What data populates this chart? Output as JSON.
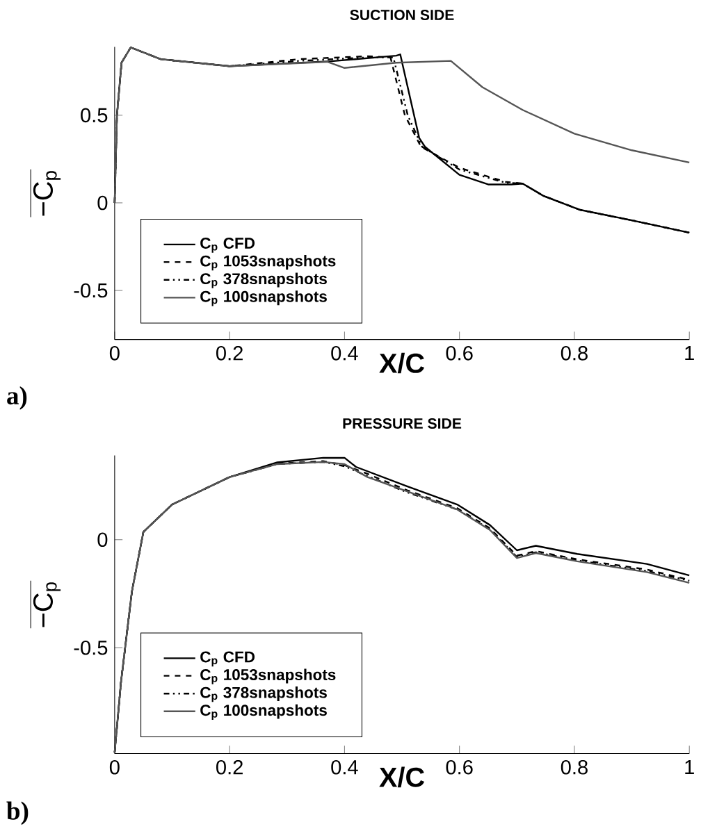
{
  "chart_data": [
    {
      "type": "line",
      "title": "SUCTION SIDE",
      "xlabel": "X/C",
      "ylabel": "−C$_{p}$",
      "annotations": [
        "a)"
      ],
      "xlim": [
        0,
        1
      ],
      "ylim": [
        -0.78,
        0.89
      ],
      "xticks": [
        0,
        0.2,
        0.4,
        0.6,
        0.8,
        1
      ],
      "yticks": [
        -0.5,
        0,
        0.5
      ],
      "legend": "bottom left",
      "series": [
        {
          "name": "C$_{p}$ CFD",
          "color": "#000000",
          "line_style": "solid",
          "x": [
            0,
            0.004,
            0.012,
            0.028,
            0.08,
            0.2,
            0.377,
            0.49,
            0.497,
            0.53,
            0.54,
            0.6,
            0.65,
            0.69,
            0.71,
            0.746,
            0.81,
            0.9,
            1
          ],
          "values": [
            0,
            0.5,
            0.8,
            0.887,
            0.82,
            0.78,
            0.808,
            0.84,
            0.847,
            0.37,
            0.32,
            0.16,
            0.105,
            0.105,
            0.11,
            0.04,
            -0.04,
            -0.1,
            -0.17
          ]
        },
        {
          "name": "C$_{p}$ 1053snapshots",
          "color": "#000000",
          "line_style": "dashed",
          "x": [
            0,
            0.004,
            0.012,
            0.028,
            0.08,
            0.2,
            0.32,
            0.44,
            0.48,
            0.505,
            0.533,
            0.6,
            0.68,
            0.71,
            0.746,
            0.81,
            0.9,
            1
          ],
          "values": [
            0,
            0.5,
            0.8,
            0.887,
            0.82,
            0.78,
            0.82,
            0.837,
            0.83,
            0.5,
            0.32,
            0.2,
            0.12,
            0.11,
            0.04,
            -0.04,
            -0.1,
            -0.17
          ]
        },
        {
          "name": "C$_{p}$ 378snapshots",
          "color": "#000000",
          "line_style": "dashdot",
          "x": [
            0,
            0.004,
            0.012,
            0.028,
            0.08,
            0.2,
            0.32,
            0.44,
            0.485,
            0.51,
            0.535,
            0.6,
            0.68,
            0.71,
            0.746,
            0.81,
            0.9,
            1
          ],
          "values": [
            0,
            0.5,
            0.8,
            0.887,
            0.82,
            0.78,
            0.81,
            0.83,
            0.83,
            0.5,
            0.32,
            0.19,
            0.115,
            0.11,
            0.04,
            -0.04,
            -0.1,
            -0.17
          ]
        },
        {
          "name": "C$_{p}$ 100snapshots",
          "color": "#555555",
          "line_style": "solid",
          "x": [
            0,
            0.004,
            0.012,
            0.028,
            0.08,
            0.2,
            0.37,
            0.4,
            0.49,
            0.585,
            0.64,
            0.71,
            0.8,
            0.9,
            1
          ],
          "values": [
            0,
            0.5,
            0.8,
            0.887,
            0.82,
            0.78,
            0.805,
            0.77,
            0.8,
            0.81,
            0.66,
            0.53,
            0.395,
            0.3,
            0.23
          ]
        }
      ]
    },
    {
      "type": "line",
      "title": "PRESSURE SIDE",
      "xlabel": "X/C",
      "ylabel": "−C$_{p}$",
      "annotations": [
        "b)"
      ],
      "xlim": [
        0,
        1
      ],
      "ylim": [
        -0.99,
        0.39
      ],
      "xticks": [
        0,
        0.2,
        0.4,
        0.6,
        0.8,
        1
      ],
      "yticks": [
        -0.5,
        0
      ],
      "legend": "bottom left",
      "series": [
        {
          "name": "C$_{p}$ CFD",
          "color": "#000000",
          "line_style": "solid",
          "x": [
            0,
            0.011,
            0.03,
            0.05,
            0.1,
            0.2,
            0.283,
            0.363,
            0.4,
            0.42,
            0.508,
            0.596,
            0.653,
            0.7,
            0.733,
            0.805,
            0.926,
            1
          ],
          "values": [
            -0.985,
            -0.66,
            -0.24,
            0.036,
            0.163,
            0.29,
            0.358,
            0.379,
            0.379,
            0.337,
            0.248,
            0.163,
            0.068,
            -0.049,
            -0.028,
            -0.066,
            -0.112,
            -0.165
          ]
        },
        {
          "name": "C$_{p}$ 1053snapshots",
          "color": "#000000",
          "line_style": "dashed",
          "x": [
            0,
            0.011,
            0.03,
            0.05,
            0.1,
            0.2,
            0.283,
            0.363,
            0.4,
            0.435,
            0.508,
            0.596,
            0.653,
            0.7,
            0.733,
            0.805,
            0.926,
            1
          ],
          "values": [
            -0.985,
            -0.66,
            -0.24,
            0.036,
            0.163,
            0.29,
            0.352,
            0.364,
            0.345,
            0.31,
            0.23,
            0.146,
            0.053,
            -0.074,
            -0.053,
            -0.091,
            -0.138,
            -0.186
          ]
        },
        {
          "name": "C$_{p}$ 378snapshots",
          "color": "#000000",
          "line_style": "dashdot",
          "x": [
            0,
            0.011,
            0.03,
            0.05,
            0.1,
            0.2,
            0.283,
            0.363,
            0.4,
            0.435,
            0.508,
            0.596,
            0.653,
            0.7,
            0.733,
            0.805,
            0.926,
            1
          ],
          "values": [
            -0.985,
            -0.66,
            -0.24,
            0.036,
            0.163,
            0.29,
            0.35,
            0.36,
            0.34,
            0.3,
            0.22,
            0.14,
            0.048,
            -0.08,
            -0.058,
            -0.096,
            -0.145,
            -0.19
          ]
        },
        {
          "name": "C$_{p}$ 100snapshots",
          "color": "#555555",
          "line_style": "solid",
          "x": [
            0,
            0.011,
            0.03,
            0.05,
            0.1,
            0.2,
            0.283,
            0.363,
            0.4,
            0.44,
            0.508,
            0.596,
            0.653,
            0.7,
            0.733,
            0.805,
            0.926,
            1
          ],
          "values": [
            -0.985,
            -0.66,
            -0.24,
            0.036,
            0.163,
            0.29,
            0.35,
            0.36,
            0.35,
            0.29,
            0.225,
            0.14,
            0.045,
            -0.085,
            -0.062,
            -0.1,
            -0.15,
            -0.2
          ]
        }
      ]
    }
  ]
}
